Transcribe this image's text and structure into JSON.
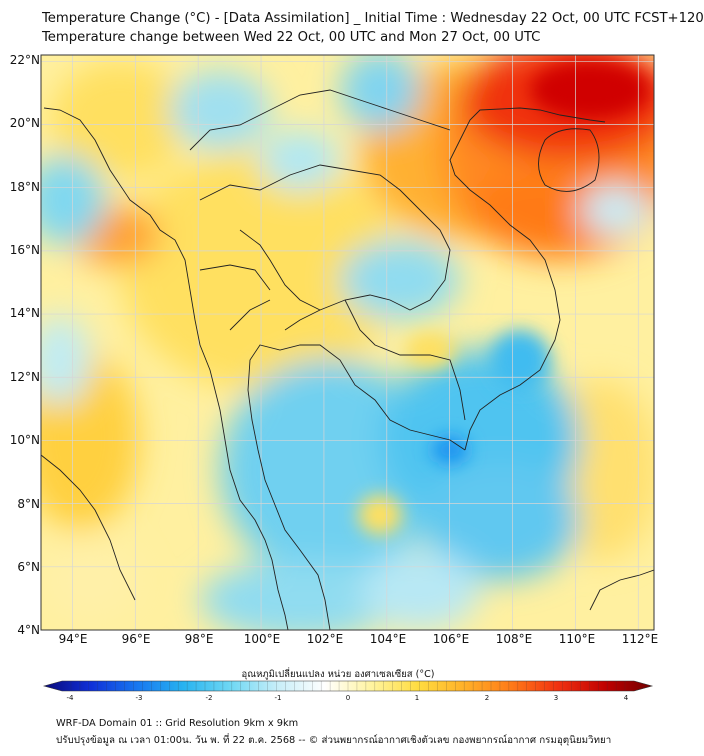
{
  "header": {
    "title_line1": "Temperature Change (°C) - [Data Assimilation] _ Initial Time : Wednesday 22 Oct, 00 UTC FCST+120",
    "title_line2": "Temperature change between Wed 22 Oct, 00 UTC and Mon 27 Oct, 00 UTC"
  },
  "map": {
    "lat_labels": [
      "22°N",
      "20°N",
      "18°N",
      "16°N",
      "14°N",
      "12°N",
      "10°N",
      "8°N",
      "6°N",
      "4°N"
    ],
    "lon_labels": [
      "94°E",
      "96°E",
      "98°E",
      "100°E",
      "102°E",
      "104°E",
      "106°E",
      "108°E",
      "110°E",
      "112°E"
    ],
    "extent": {
      "lon_min": 93,
      "lon_max": 112.5,
      "lat_min": 4,
      "lat_max": 22.2
    },
    "grid": true,
    "grid_step_degrees": 2
  },
  "colorbar": {
    "title": "อุณหภูมิเปลี่ยนแปลง หน่วย องศาเซลเซียส (°C)",
    "min": -4,
    "max": 4,
    "tick_labels": [
      "-4",
      "-3",
      "-2",
      "-1",
      "0",
      "1",
      "2",
      "3",
      "4"
    ],
    "colors": [
      "#0a0a7a",
      "#1030d8",
      "#1878f0",
      "#28b4f0",
      "#70d8f4",
      "#c8eef8",
      "#ffffff",
      "#fff4a0",
      "#ffdc40",
      "#ffb028",
      "#ff7a18",
      "#f03010",
      "#c00000",
      "#700000"
    ]
  },
  "footer": {
    "line1": "WRF-DA Domain 01 :: Grid Resolution 9km x 9km",
    "line2": "ปรับปรุงข้อมูล ณ เวลา 01:00น. วัน พ. ที่ 22 ต.ค. 2568 -- © ส่วนพยากรณ์อากาศเชิงตัวเลข กองพยากรณ์อากาศ กรมอุตุนิยมวิทยา"
  }
}
